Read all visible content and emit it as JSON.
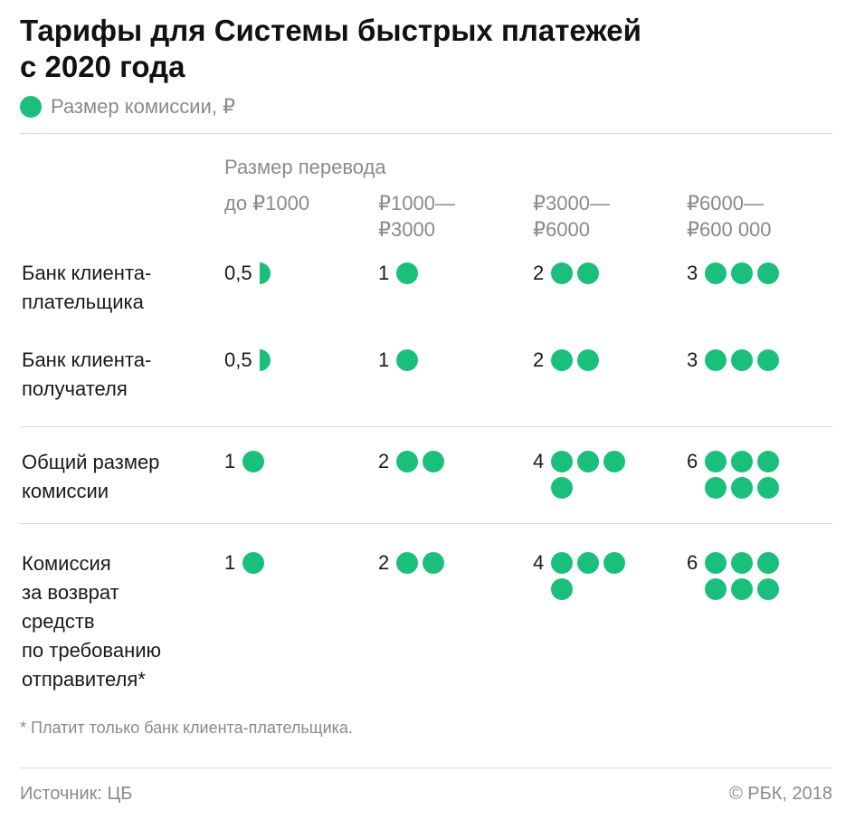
{
  "title": [
    "Тарифы для Системы быстрых платежей",
    "с 2020 года"
  ],
  "legend": {
    "label": "Размер комиссии, ₽",
    "color": "#1bbf7c",
    "icon": "green-circle-icon"
  },
  "chart_data": {
    "type": "table",
    "title": "Тарифы для Системы быстрых платежей с 2020 года",
    "header_label": "Размер перевода",
    "columns": [
      [
        "до ₽1000"
      ],
      [
        "₽1000—",
        "₽3000"
      ],
      [
        "₽3000—",
        "₽6000"
      ],
      [
        "₽6000—",
        "₽600 000"
      ]
    ],
    "rows": [
      {
        "label": [
          "Банк клиента-",
          "плательщика"
        ],
        "values": [
          0.5,
          1,
          2,
          3
        ],
        "display": [
          "0,5",
          "1",
          "2",
          "3"
        ]
      },
      {
        "label": [
          "Банк клиента-",
          "получателя"
        ],
        "values": [
          0.5,
          1,
          2,
          3
        ],
        "display": [
          "0,5",
          "1",
          "2",
          "3"
        ]
      },
      {
        "label": [
          "Общий размер",
          "комиссии"
        ],
        "values": [
          1,
          2,
          4,
          6
        ],
        "display": [
          "1",
          "2",
          "4",
          "6"
        ]
      },
      {
        "label": [
          "Комиссия",
          "за возврат",
          "средств",
          "по требованию",
          "отправителя*"
        ],
        "values": [
          1,
          2,
          4,
          6
        ],
        "display": [
          "1",
          "2",
          "4",
          "6"
        ]
      }
    ],
    "unit": "₽"
  },
  "footnote": "* Платит только банк клиента-плательщика.",
  "source": "Источник: ЦБ",
  "credit": "© РБК, 2018"
}
